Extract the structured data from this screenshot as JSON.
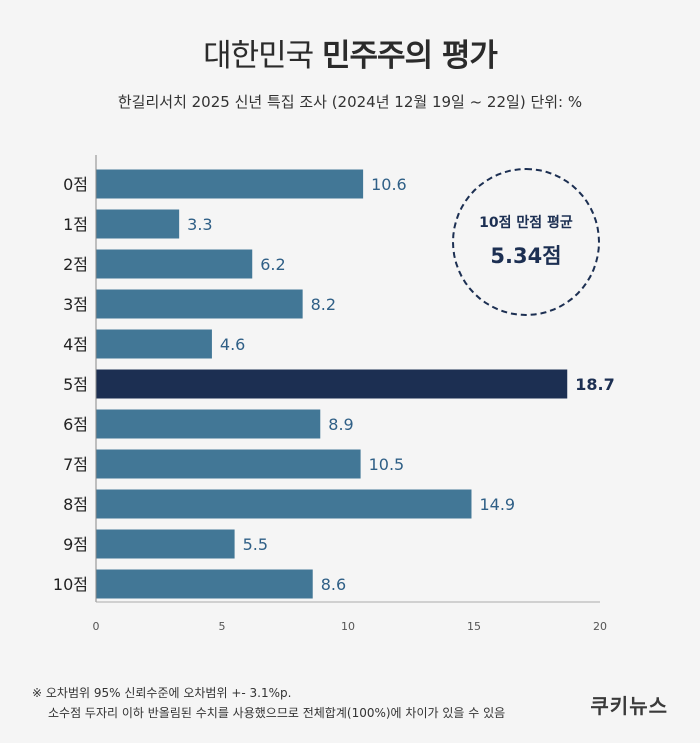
{
  "title": {
    "light": "대한민국",
    "bold": "민주주의 평가"
  },
  "subtitle": "한길리서치 2025 신년 특집 조사 (2024년 12월 19일 ~ 22일) 단위: %",
  "callout": {
    "label": "10점 만점 평균",
    "value": "5.34점"
  },
  "notes": [
    "※ 오차범위 95% 신뢰수준에 오차범위 +- 3.1%p.",
    "소수점 두자리 이하 반올림된 수치를 사용했으므로 전체합계(100%)에 차이가 있을 수 있음"
  ],
  "brand": "쿠키뉴스",
  "colors": {
    "bar": "#427796",
    "highlight": "#1c2f52",
    "value_text": "#2f5f86"
  },
  "chart_data": {
    "type": "bar",
    "orientation": "horizontal",
    "categories": [
      "0점",
      "1점",
      "2점",
      "3점",
      "4점",
      "5점",
      "6점",
      "7점",
      "8점",
      "9점",
      "10점"
    ],
    "values": [
      10.6,
      3.3,
      6.2,
      8.2,
      4.6,
      18.7,
      8.9,
      10.5,
      14.9,
      5.5,
      8.6
    ],
    "value_labels": [
      "10.6",
      "3.3",
      "6.2",
      "8.2",
      "4.6",
      "18.7",
      "8.9",
      "10.5",
      "14.9",
      "5.5",
      "8.6"
    ],
    "highlight_category": "5점",
    "xlim": [
      0,
      20
    ],
    "xticks": [
      0,
      5,
      10,
      15,
      20
    ],
    "xtick_labels": [
      "0",
      "5",
      "10",
      "15",
      "20"
    ],
    "grid": false
  }
}
